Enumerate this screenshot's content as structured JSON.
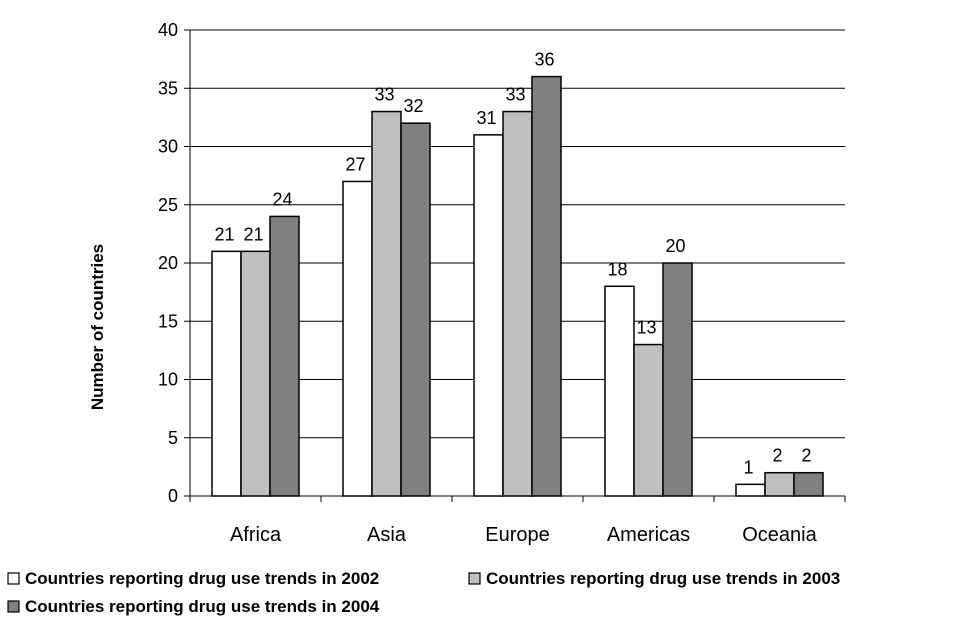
{
  "chart_data": {
    "type": "bar",
    "title": "",
    "xlabel": "",
    "ylabel": "Number of countries",
    "ylim": [
      0,
      40
    ],
    "yticks": [
      0,
      5,
      10,
      15,
      20,
      25,
      30,
      35,
      40
    ],
    "grid": true,
    "legend_position": "bottom",
    "categories": [
      "Africa",
      "Asia",
      "Europe",
      "Americas",
      "Oceania"
    ],
    "series": [
      {
        "name": "Countries reporting drug use trends in 2002",
        "color": "#ffffff",
        "values": [
          21,
          27,
          31,
          18,
          1
        ]
      },
      {
        "name": "Countries reporting drug use trends in 2003",
        "color": "#c0c0c0",
        "values": [
          21,
          33,
          33,
          13,
          2
        ]
      },
      {
        "name": "Countries reporting drug use trends in 2004",
        "color": "#808080",
        "values": [
          24,
          32,
          36,
          20,
          2
        ]
      }
    ]
  }
}
